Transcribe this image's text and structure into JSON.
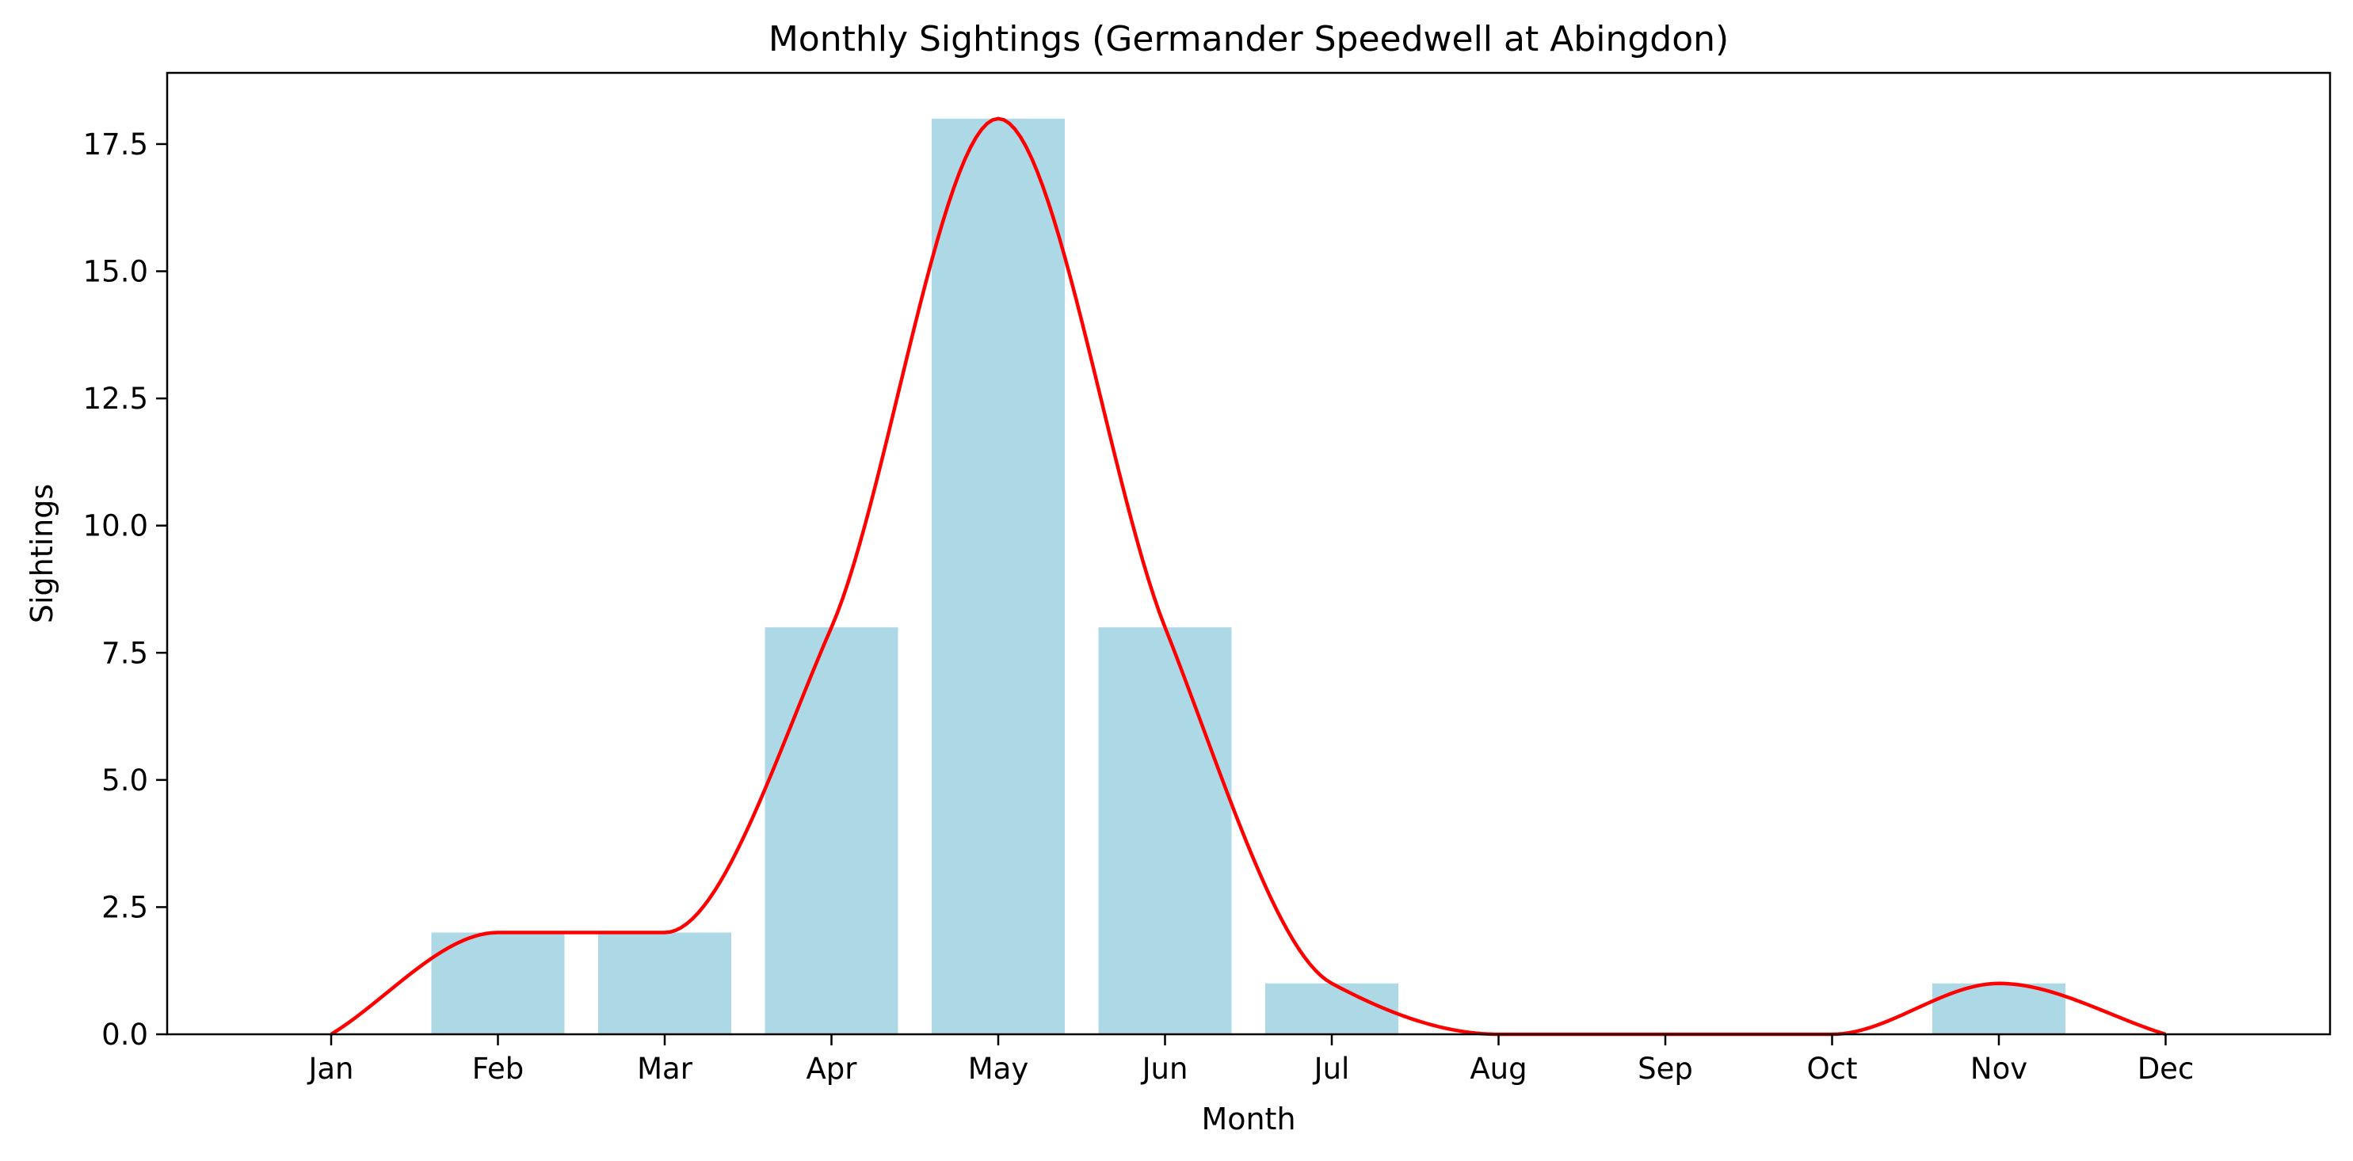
{
  "chart_data": {
    "type": "bar",
    "title": "Monthly Sightings (Germander Speedwell at Abingdon)",
    "xlabel": "Month",
    "ylabel": "Sightings",
    "categories": [
      "Jan",
      "Feb",
      "Mar",
      "Apr",
      "May",
      "Jun",
      "Jul",
      "Aug",
      "Sep",
      "Oct",
      "Nov",
      "Dec"
    ],
    "series": [
      {
        "type": "bar",
        "values": [
          0,
          2,
          2,
          8,
          18,
          8,
          1,
          0,
          0,
          0,
          1,
          0
        ],
        "color": "#add8e6"
      },
      {
        "type": "line",
        "smooth": true,
        "values": [
          0,
          2,
          2,
          8,
          18,
          8,
          1,
          0,
          0,
          0,
          1,
          0
        ],
        "color": "#ff0000"
      }
    ],
    "ylim": [
      0,
      18.9
    ],
    "yticks": [
      0.0,
      2.5,
      5.0,
      7.5,
      10.0,
      12.5,
      15.0,
      17.5
    ],
    "ytick_labels": [
      "0.0",
      "2.5",
      "5.0",
      "7.5",
      "10.0",
      "12.5",
      "15.0",
      "17.5"
    ],
    "grid": false,
    "legend": "none"
  }
}
